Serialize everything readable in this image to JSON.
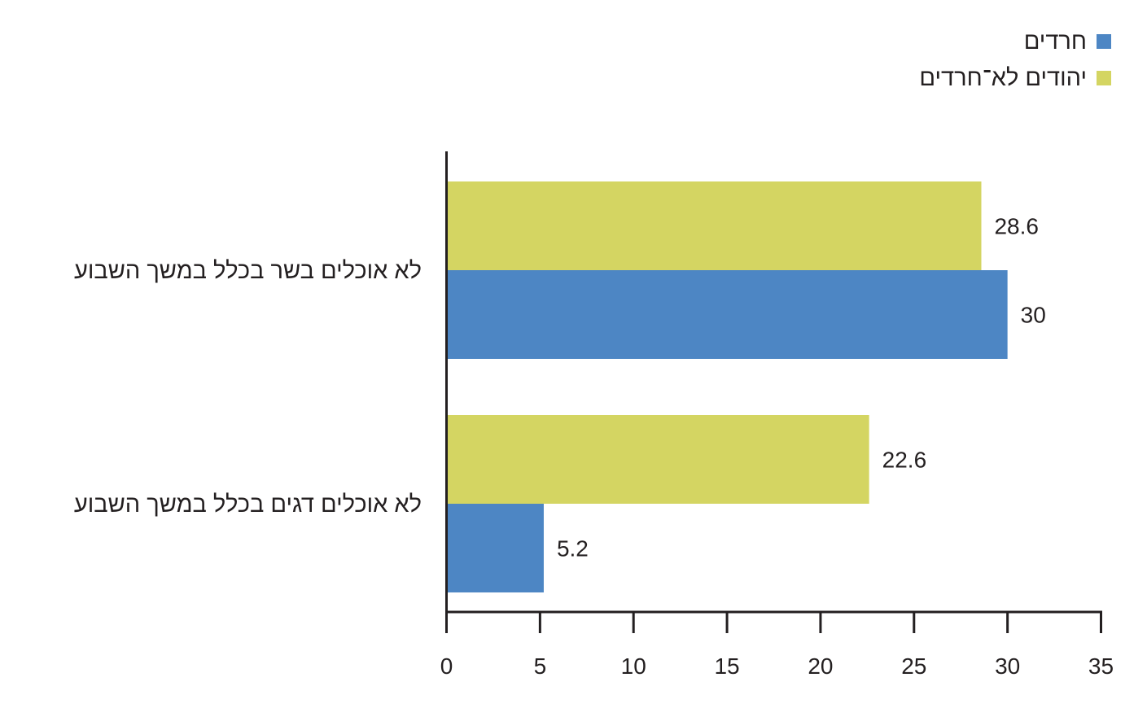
{
  "chart_data": {
    "type": "bar",
    "orientation": "horizontal",
    "categories": [
      "לא אוכלים בשר בכלל במשך השבוע",
      "לא אוכלים דגים בכלל במשך השבוע"
    ],
    "series": [
      {
        "name": "יהודים לא־חרדים",
        "color": "#d4d562",
        "values": [
          28.6,
          22.6
        ]
      },
      {
        "name": "חרדים",
        "color": "#4d86c4",
        "values": [
          30,
          5.2
        ]
      }
    ],
    "data_labels": [
      [
        "28.6",
        "22.6"
      ],
      [
        "30",
        "5.2"
      ]
    ],
    "xlim": [
      0,
      35
    ],
    "xticks": [
      0,
      5,
      10,
      15,
      20,
      25,
      30,
      35
    ],
    "grid": false,
    "legend_position": "top-right"
  },
  "legend": [
    {
      "label": "חרדים",
      "color": "#4d86c4"
    },
    {
      "label": "יהודים לא־חרדים",
      "color": "#d4d562"
    }
  ]
}
